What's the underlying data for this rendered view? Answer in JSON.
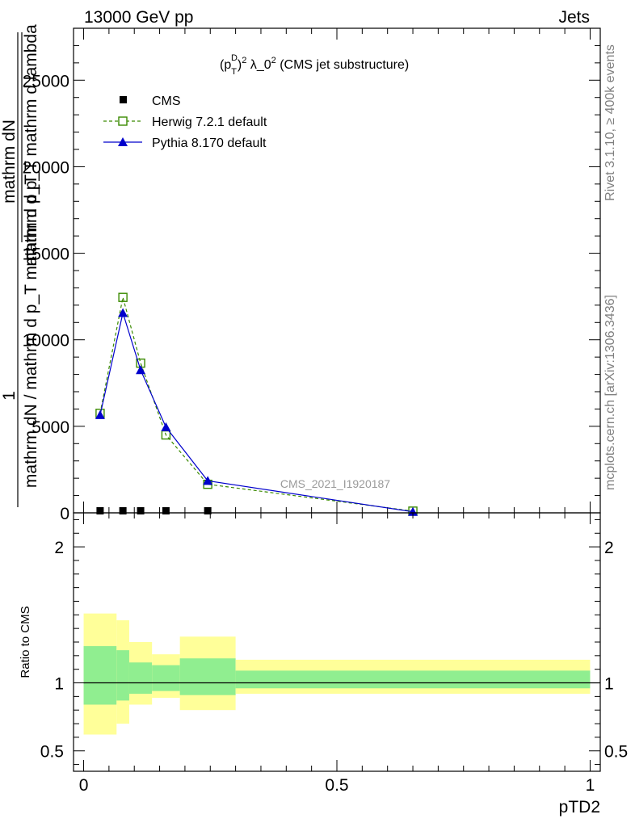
{
  "header": {
    "left": "13000 GeV pp",
    "right": "Jets"
  },
  "side_labels": {
    "rivet": "Rivet 3.1.10, ≥ 400k events",
    "mcplots": "mcplots.cern.ch [arXiv:1306.3436]"
  },
  "ylabel_fragments": {
    "a": "1",
    "b": "mathrm dN / mathrm d p_T mathrm d p_T",
    "c": "mathrm dN",
    "d": "mathrm d p_T mathrm d lambda"
  },
  "chart_data": [
    {
      "type": "line",
      "title": "(p_T^D)^2 λ_0^2 (CMS jet substructure)",
      "title_parts": {
        "p": "(p",
        "sub": "T",
        "sup": "D",
        "close": ")",
        "two": "2",
        "rest": " λ_0",
        "rest_sup": "2",
        "tail": " (CMS jet substructure)"
      },
      "watermark": "CMS_2021_I1920187",
      "xlabel": "pTD2",
      "ylabel": "",
      "xlim": [
        -0.02,
        1.02
      ],
      "ylim": [
        0,
        28000
      ],
      "x_ticks": [
        0,
        0.5,
        1
      ],
      "x_tick_labels": [
        "0",
        "0.5",
        "1"
      ],
      "y_ticks": [
        0,
        5000,
        10000,
        15000,
        20000,
        25000
      ],
      "y_tick_labels": [
        "0",
        "5000",
        "10000",
        "15000",
        "20000",
        "25000"
      ],
      "legend_position": "top-left",
      "series": [
        {
          "name": "CMS",
          "color": "#000000",
          "marker": "square",
          "x": [
            0.0325,
            0.0775,
            0.1125,
            0.1625,
            0.245
          ],
          "y": [
            0,
            0,
            0,
            0,
            0
          ]
        },
        {
          "name": "Herwig 7.2.1 default",
          "color": "#3a8a00",
          "marker": "open-square",
          "style": "dashed",
          "x": [
            0.0325,
            0.0775,
            0.1125,
            0.1625,
            0.245,
            0.65
          ],
          "y": [
            5750,
            12450,
            8650,
            4500,
            1650,
            100
          ]
        },
        {
          "name": "Pythia 8.170 default",
          "color": "#0000cc",
          "marker": "triangle",
          "style": "solid",
          "x": [
            0.0325,
            0.0775,
            0.1125,
            0.1625,
            0.245,
            0.65
          ],
          "y": [
            5650,
            11550,
            8250,
            4950,
            1850,
            60
          ]
        }
      ]
    },
    {
      "type": "area",
      "ylabel": "Ratio to CMS",
      "xlabel": "pTD2",
      "xlim": [
        -0.02,
        1.02
      ],
      "ylim": [
        0.35,
        2.25
      ],
      "y_ticks": [
        0.5,
        1,
        2
      ],
      "y_tick_labels": [
        "0.5",
        "1",
        "2"
      ],
      "reference": 1,
      "bands": [
        {
          "x": [
            0.0,
            0.065
          ],
          "inner": [
            0.84,
            1.27
          ],
          "outer": [
            0.62,
            1.51
          ]
        },
        {
          "x": [
            0.065,
            0.09
          ],
          "inner": [
            0.87,
            1.24
          ],
          "outer": [
            0.7,
            1.46
          ]
        },
        {
          "x": [
            0.09,
            0.135
          ],
          "inner": [
            0.92,
            1.15
          ],
          "outer": [
            0.84,
            1.3
          ]
        },
        {
          "x": [
            0.135,
            0.19
          ],
          "inner": [
            0.94,
            1.13
          ],
          "outer": [
            0.89,
            1.21
          ]
        },
        {
          "x": [
            0.19,
            0.3
          ],
          "inner": [
            0.91,
            1.18
          ],
          "outer": [
            0.8,
            1.34
          ]
        },
        {
          "x": [
            0.3,
            1.0
          ],
          "inner": [
            0.96,
            1.09
          ],
          "outer": [
            0.92,
            1.17
          ]
        }
      ],
      "colors": {
        "inner": "#90ee90",
        "outer": "#ffff99"
      }
    }
  ]
}
